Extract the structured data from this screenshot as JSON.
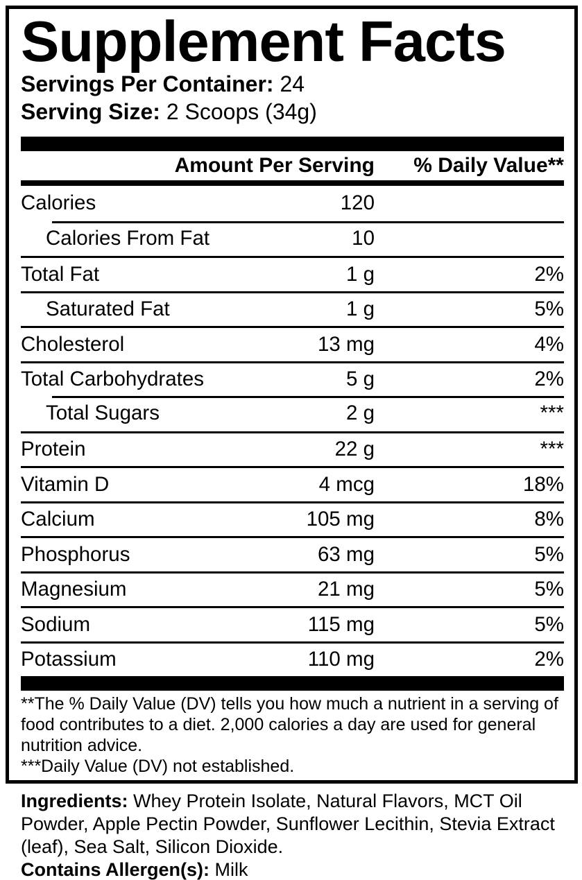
{
  "label": {
    "title": "Supplement Facts",
    "servings_per_container": {
      "label": "Servings Per Container:",
      "value": "24"
    },
    "serving_size": {
      "label": "Serving Size:",
      "value": "2 Scoops (34g)"
    },
    "columns": {
      "amount": "Amount Per Serving",
      "daily_value": "% Daily Value**"
    },
    "rows": [
      {
        "name": "Calories",
        "amount": "120",
        "dv": "",
        "indent": false,
        "sep": "none"
      },
      {
        "name": "Calories From Fat",
        "amount": "10",
        "dv": "",
        "indent": true,
        "sep": "indent"
      },
      {
        "name": "Total Fat",
        "amount": "1 g",
        "dv": "2%",
        "indent": false,
        "sep": "full"
      },
      {
        "name": "Saturated Fat",
        "amount": "1 g",
        "dv": "5%",
        "indent": true,
        "sep": "full"
      },
      {
        "name": "Cholesterol",
        "amount": "13 mg",
        "dv": "4%",
        "indent": false,
        "sep": "full"
      },
      {
        "name": "Total Carbohydrates",
        "amount": "5 g",
        "dv": "2%",
        "indent": false,
        "sep": "full"
      },
      {
        "name": "Total Sugars",
        "amount": "2 g",
        "dv": "***",
        "indent": true,
        "sep": "indent"
      },
      {
        "name": "Protein",
        "amount": "22 g",
        "dv": "***",
        "indent": false,
        "sep": "full"
      },
      {
        "name": "Vitamin D",
        "amount": "4 mcg",
        "dv": "18%",
        "indent": false,
        "sep": "full"
      },
      {
        "name": "Calcium",
        "amount": "105 mg",
        "dv": "8%",
        "indent": false,
        "sep": "full"
      },
      {
        "name": "Phosphorus",
        "amount": "63 mg",
        "dv": "5%",
        "indent": false,
        "sep": "full"
      },
      {
        "name": "Magnesium",
        "amount": "21 mg",
        "dv": "5%",
        "indent": false,
        "sep": "full"
      },
      {
        "name": "Sodium",
        "amount": "115 mg",
        "dv": "5%",
        "indent": false,
        "sep": "full"
      },
      {
        "name": "Potassium",
        "amount": "110 mg",
        "dv": "2%",
        "indent": false,
        "sep": "full"
      }
    ],
    "footnotes": {
      "daily_value": "**The % Daily Value (DV) tells you how much a nutrient in a serving of food contributes to a diet. 2,000 calories a day are used for general nutrition advice.",
      "not_established": "***Daily Value (DV) not established."
    }
  },
  "footer": {
    "ingredients_label": "Ingredients:",
    "ingredients": " Whey Protein Isolate, Natural Flavors, MCT Oil Powder, Apple Pectin Powder, Sunflower Lecithin, Stevia Extract (leaf), Sea Salt, Silicon Dioxide.",
    "allergen_label": "Contains Allergen(s):",
    "allergen": " Milk"
  },
  "colors": {
    "ink": "#000000",
    "background": "#ffffff"
  }
}
